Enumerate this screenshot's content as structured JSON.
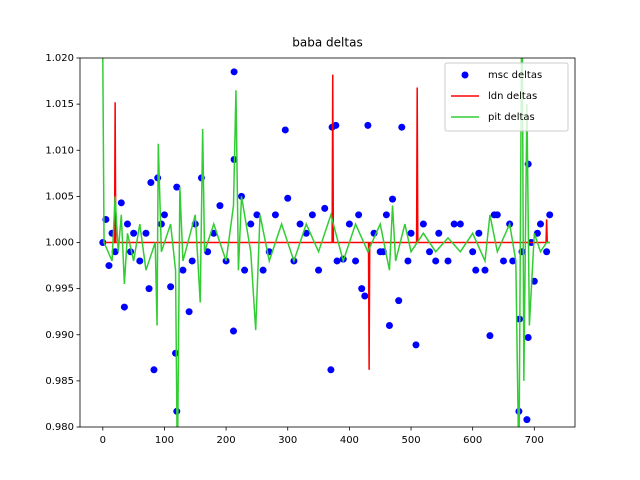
{
  "chart_data": {
    "type": "mixed",
    "title": "baba deltas",
    "xlim": [
      -37,
      766
    ],
    "ylim": [
      0.98,
      1.02
    ],
    "xticks": [
      0,
      100,
      200,
      300,
      400,
      500,
      600,
      700
    ],
    "yticks": [
      {
        "value": 0.98,
        "label": "0.980"
      },
      {
        "value": 0.985,
        "label": "0.985"
      },
      {
        "value": 0.99,
        "label": "0.990"
      },
      {
        "value": 0.995,
        "label": "0.995"
      },
      {
        "value": 1.0,
        "label": "1.000"
      },
      {
        "value": 1.005,
        "label": "1.005"
      },
      {
        "value": 1.01,
        "label": "1.010"
      },
      {
        "value": 1.015,
        "label": "1.015"
      },
      {
        "value": 1.02,
        "label": "1.020"
      }
    ],
    "legend": "upper right",
    "series": [
      {
        "name": "msc deltas",
        "type": "scatter",
        "color": "#0000ff",
        "x": [
          213,
          296,
          378,
          372,
          430,
          485,
          213,
          690,
          78,
          89,
          160,
          120,
          35,
          83,
          370,
          118,
          120,
          675,
          688,
          212,
          508,
          628,
          690,
          465,
          480,
          676,
          700,
          140,
          110,
          75,
          420,
          425,
          470,
          300,
          360,
          390,
          30,
          10,
          5,
          50,
          0,
          20,
          40,
          60,
          70,
          100,
          130,
          150,
          170,
          190,
          200,
          225,
          240,
          260,
          280,
          310,
          330,
          340,
          350,
          400,
          410,
          440,
          450,
          460,
          495,
          520,
          530,
          545,
          560,
          580,
          600,
          610,
          620,
          640,
          650,
          660,
          680,
          695,
          710,
          720,
          725,
          15,
          45,
          95,
          145,
          180,
          230,
          250,
          270,
          320,
          380,
          415,
          455,
          500,
          540,
          570,
          605,
          635,
          665,
          705
        ],
        "values": [
          1.0185,
          1.0122,
          1.0127,
          1.0125,
          1.0127,
          1.0125,
          1.009,
          1.0085,
          1.0065,
          1.007,
          1.007,
          1.006,
          0.993,
          0.9862,
          0.9862,
          0.988,
          0.9817,
          0.9817,
          0.9808,
          0.9904,
          0.9889,
          0.9899,
          0.9897,
          0.991,
          0.9937,
          0.9917,
          0.9958,
          0.9925,
          0.9952,
          0.995,
          0.995,
          0.9942,
          1.0047,
          1.0048,
          1.0037,
          0.9982,
          1.0043,
          0.9975,
          1.0025,
          1.001,
          1.0,
          0.999,
          1.002,
          0.998,
          1.001,
          1.003,
          0.997,
          1.002,
          0.999,
          1.004,
          0.998,
          1.005,
          1.002,
          0.997,
          1.003,
          0.998,
          1.001,
          1.003,
          0.997,
          1.002,
          0.998,
          1.001,
          0.999,
          1.003,
          0.998,
          1.002,
          0.999,
          1.001,
          0.998,
          1.002,
          0.999,
          1.001,
          0.997,
          1.003,
          0.998,
          1.002,
          0.999,
          1.0,
          1.002,
          0.999,
          1.003,
          1.001,
          0.999,
          1.002,
          0.998,
          1.001,
          0.997,
          1.003,
          0.999,
          1.002,
          0.998,
          1.003,
          0.999,
          1.001,
          0.998,
          1.002,
          0.997,
          1.003,
          0.998,
          1.001
        ]
      },
      {
        "name": "ldn deltas",
        "type": "line",
        "color": "#ff0000",
        "x": [
          0,
          19,
          20,
          21,
          372,
          373,
          374,
          431,
          432,
          433,
          509,
          510,
          511,
          719,
          720,
          721,
          725
        ],
        "values": [
          1.0,
          1.0,
          1.0152,
          1.0,
          1.0,
          1.0182,
          1.0,
          1.0,
          0.9862,
          1.0,
          1.0,
          1.0168,
          1.0,
          1.0,
          1.0025,
          1.0,
          1.0
        ]
      },
      {
        "name": "pit deltas",
        "type": "line",
        "color": "#32cd32",
        "x": [
          0,
          2,
          15,
          20,
          25,
          30,
          35,
          40,
          50,
          60,
          70,
          85,
          88,
          90,
          95,
          110,
          118,
          121,
          125,
          130,
          150,
          158,
          162,
          165,
          180,
          200,
          212,
          216,
          220,
          225,
          240,
          248,
          255,
          270,
          290,
          310,
          330,
          350,
          370,
          390,
          410,
          430,
          450,
          465,
          470,
          475,
          490,
          500,
          520,
          540,
          560,
          580,
          600,
          620,
          628,
          640,
          660,
          670,
          675,
          680,
          683,
          688,
          692,
          700,
          710,
          720,
          725
        ],
        "values": [
          1.02,
          1.0,
          0.998,
          1.005,
          0.999,
          1.003,
          0.9955,
          1.001,
          0.998,
          1.002,
          0.997,
          1.0,
          0.991,
          1.0107,
          0.999,
          1.002,
          0.997,
          0.975,
          1.006,
          0.998,
          1.003,
          0.9935,
          1.0123,
          0.999,
          1.002,
          0.998,
          1.004,
          1.0165,
          0.997,
          1.005,
          0.999,
          0.9905,
          1.003,
          0.998,
          1.002,
          0.998,
          1.002,
          0.999,
          1.003,
          0.998,
          1.002,
          0.999,
          1.002,
          0.997,
          1.004,
          0.998,
          1.002,
          0.999,
          1.001,
          0.999,
          1.0005,
          0.999,
          1.001,
          0.998,
          1.003,
          0.999,
          1.002,
          0.998,
          0.975,
          1.03,
          0.985,
          1.015,
          0.991,
          1.001,
          0.999,
          1.0,
          1.0
        ]
      }
    ]
  }
}
